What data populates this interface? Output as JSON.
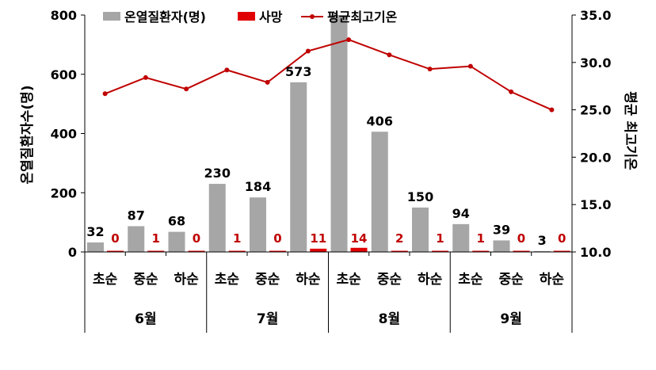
{
  "chart_data": {
    "type": "bar",
    "categories": [
      "초순",
      "중순",
      "하순",
      "초순",
      "중순",
      "하순",
      "초순",
      "중순",
      "하순",
      "초순",
      "중순",
      "하순"
    ],
    "months": [
      "6월",
      "7월",
      "8월",
      "9월"
    ],
    "series": [
      {
        "name": "온열질환자(명)",
        "type": "bar",
        "axis": "left",
        "color": "#a6a6a6",
        "values": [
          32,
          87,
          68,
          230,
          184,
          573,
          800,
          406,
          150,
          94,
          39,
          3
        ],
        "labels": [
          "32",
          "87",
          "68",
          "230",
          "184",
          "573",
          "",
          "406",
          "150",
          "94",
          "39",
          "3"
        ]
      },
      {
        "name": "사망",
        "type": "bar",
        "axis": "left",
        "color": "#e00000",
        "values": [
          0,
          1,
          0,
          1,
          0,
          11,
          14,
          2,
          1,
          1,
          0,
          0
        ],
        "labels": [
          "0",
          "1",
          "0",
          "1",
          "0",
          "11",
          "14",
          "2",
          "1",
          "1",
          "0",
          "0"
        ]
      },
      {
        "name": "평균최고기온",
        "type": "line",
        "axis": "right",
        "color": "#c00000",
        "values": [
          26.7,
          28.4,
          27.2,
          29.2,
          27.9,
          31.2,
          32.4,
          30.8,
          29.3,
          29.6,
          26.9,
          25.0
        ]
      }
    ],
    "ylabel": "온열질환자수(명)",
    "y2label": "평균 최고기온",
    "ylim": [
      0,
      800
    ],
    "yticks": [
      "0",
      "200",
      "400",
      "600",
      "800"
    ],
    "y2lim": [
      10,
      35
    ],
    "y2ticks": [
      "10.0",
      "15.0",
      "20.0",
      "25.0",
      "30.0",
      "35.0"
    ],
    "legend_position": "top"
  }
}
